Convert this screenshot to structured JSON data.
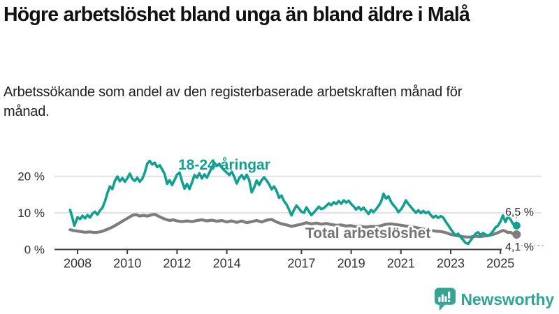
{
  "header": {
    "title": "Högre arbetslöshet bland unga än bland äldre i Malå",
    "subtitle": "Arbetssökande som andel av den registerbaserade arbetskraften månad för månad."
  },
  "footer": {
    "brand": "Newsworthy",
    "logo_icon": "speech-bubble-bar-chart-exclamation",
    "brand_color": "#2fa594"
  },
  "chart_data": {
    "type": "line",
    "title": "",
    "xlabel": "",
    "ylabel": "",
    "grid": "horizontal",
    "x_axis": {
      "ticks": [
        2008,
        2010,
        2012,
        2014,
        2017,
        2019,
        2021,
        2023,
        2025
      ],
      "range": [
        2007.1,
        2026.6
      ]
    },
    "y_axis": {
      "ticks": [
        0,
        10,
        20
      ],
      "tick_suffix": " %",
      "range": [
        0,
        27
      ]
    },
    "colors": {
      "grid": "#d8d8d8",
      "axis": "#3f3f3f",
      "tick_text": "#333333",
      "end_label_text": "#2b2b2b",
      "leader": "#999999"
    },
    "series": [
      {
        "name": "Total arbetslöshet",
        "color": "#7d7d7d",
        "label_color": "#737373",
        "end_label": "4,1 %",
        "end_value": 4.1,
        "points": [
          [
            2007.7,
            5.4
          ],
          [
            2007.9,
            5.1
          ],
          [
            2008.1,
            4.9
          ],
          [
            2008.3,
            4.7
          ],
          [
            2008.5,
            4.8
          ],
          [
            2008.7,
            4.6
          ],
          [
            2008.9,
            4.8
          ],
          [
            2009.0,
            5.0
          ],
          [
            2009.2,
            5.5
          ],
          [
            2009.4,
            6.1
          ],
          [
            2009.6,
            6.9
          ],
          [
            2009.8,
            7.7
          ],
          [
            2010.0,
            8.5
          ],
          [
            2010.2,
            9.3
          ],
          [
            2010.35,
            9.5
          ],
          [
            2010.5,
            9.1
          ],
          [
            2010.65,
            9.3
          ],
          [
            2010.8,
            9.1
          ],
          [
            2010.95,
            9.4
          ],
          [
            2011.1,
            9.6
          ],
          [
            2011.25,
            9.1
          ],
          [
            2011.4,
            8.6
          ],
          [
            2011.55,
            8.2
          ],
          [
            2011.7,
            7.9
          ],
          [
            2011.85,
            8.1
          ],
          [
            2012.0,
            7.8
          ],
          [
            2012.2,
            7.6
          ],
          [
            2012.4,
            7.8
          ],
          [
            2012.6,
            7.6
          ],
          [
            2012.8,
            7.9
          ],
          [
            2013.0,
            8.1
          ],
          [
            2013.2,
            7.8
          ],
          [
            2013.4,
            8.0
          ],
          [
            2013.6,
            7.7
          ],
          [
            2013.8,
            7.9
          ],
          [
            2014.0,
            7.5
          ],
          [
            2014.2,
            7.8
          ],
          [
            2014.4,
            7.4
          ],
          [
            2014.6,
            7.8
          ],
          [
            2014.8,
            7.3
          ],
          [
            2015.0,
            7.6
          ],
          [
            2015.2,
            7.9
          ],
          [
            2015.4,
            7.5
          ],
          [
            2015.6,
            8.0
          ],
          [
            2015.8,
            8.2
          ],
          [
            2016.0,
            7.5
          ],
          [
            2016.2,
            7.0
          ],
          [
            2016.4,
            6.7
          ],
          [
            2016.6,
            6.3
          ],
          [
            2016.8,
            6.6
          ],
          [
            2017.0,
            6.9
          ],
          [
            2017.2,
            7.3
          ],
          [
            2017.4,
            7.0
          ],
          [
            2017.6,
            7.2
          ],
          [
            2017.8,
            6.9
          ],
          [
            2018.0,
            7.1
          ],
          [
            2018.2,
            6.8
          ],
          [
            2018.4,
            6.6
          ],
          [
            2018.6,
            6.7
          ],
          [
            2018.8,
            6.4
          ],
          [
            2019.0,
            6.5
          ],
          [
            2019.2,
            6.2
          ],
          [
            2019.4,
            6.3
          ],
          [
            2019.6,
            6.1
          ],
          [
            2019.8,
            6.3
          ],
          [
            2020.0,
            6.2
          ],
          [
            2020.2,
            6.5
          ],
          [
            2020.4,
            6.9
          ],
          [
            2020.6,
            7.0
          ],
          [
            2020.8,
            6.8
          ],
          [
            2021.0,
            6.6
          ],
          [
            2021.2,
            6.4
          ],
          [
            2021.4,
            6.2
          ],
          [
            2021.6,
            6.0
          ],
          [
            2021.8,
            5.7
          ],
          [
            2022.0,
            5.4
          ],
          [
            2022.2,
            5.2
          ],
          [
            2022.4,
            5.0
          ],
          [
            2022.6,
            4.9
          ],
          [
            2022.8,
            4.6
          ],
          [
            2023.0,
            4.1
          ],
          [
            2023.2,
            3.8
          ],
          [
            2023.4,
            3.6
          ],
          [
            2023.6,
            3.4
          ],
          [
            2023.8,
            3.4
          ],
          [
            2024.0,
            3.6
          ],
          [
            2024.2,
            3.5
          ],
          [
            2024.4,
            3.7
          ],
          [
            2024.6,
            3.9
          ],
          [
            2024.8,
            4.3
          ],
          [
            2025.0,
            4.9
          ],
          [
            2025.1,
            5.2
          ],
          [
            2025.2,
            5.0
          ],
          [
            2025.3,
            4.6
          ],
          [
            2025.4,
            4.7
          ],
          [
            2025.5,
            4.3
          ],
          [
            2025.65,
            4.1
          ]
        ]
      },
      {
        "name": "18-24-åringar",
        "color": "#10a091",
        "label_color": "#0fa091",
        "end_label": "6,5 %",
        "end_value": 6.5,
        "points": [
          [
            2007.7,
            10.8
          ],
          [
            2007.78,
            8.9
          ],
          [
            2007.87,
            6.5
          ],
          [
            2008.0,
            8.8
          ],
          [
            2008.1,
            8.3
          ],
          [
            2008.2,
            9.2
          ],
          [
            2008.3,
            8.5
          ],
          [
            2008.4,
            9.4
          ],
          [
            2008.5,
            8.7
          ],
          [
            2008.6,
            9.8
          ],
          [
            2008.7,
            10.3
          ],
          [
            2008.8,
            9.5
          ],
          [
            2008.9,
            10.6
          ],
          [
            2009.0,
            11.4
          ],
          [
            2009.1,
            13.1
          ],
          [
            2009.2,
            15.4
          ],
          [
            2009.3,
            17.2
          ],
          [
            2009.4,
            16.5
          ],
          [
            2009.5,
            18.7
          ],
          [
            2009.6,
            19.9
          ],
          [
            2009.7,
            18.6
          ],
          [
            2009.8,
            19.5
          ],
          [
            2009.9,
            18.5
          ],
          [
            2010.0,
            19.4
          ],
          [
            2010.1,
            20.7
          ],
          [
            2010.2,
            19.3
          ],
          [
            2010.3,
            18.7
          ],
          [
            2010.4,
            19.6
          ],
          [
            2010.5,
            18.5
          ],
          [
            2010.6,
            19.3
          ],
          [
            2010.7,
            20.9
          ],
          [
            2010.8,
            23.4
          ],
          [
            2010.9,
            24.2
          ],
          [
            2011.0,
            23.2
          ],
          [
            2011.1,
            23.7
          ],
          [
            2011.2,
            22.5
          ],
          [
            2011.3,
            23.0
          ],
          [
            2011.4,
            21.9
          ],
          [
            2011.5,
            20.6
          ],
          [
            2011.6,
            17.9
          ],
          [
            2011.7,
            18.9
          ],
          [
            2011.8,
            17.6
          ],
          [
            2011.9,
            19.0
          ],
          [
            2012.0,
            20.4
          ],
          [
            2012.1,
            21.0
          ],
          [
            2012.2,
            18.6
          ],
          [
            2012.3,
            16.6
          ],
          [
            2012.4,
            17.9
          ],
          [
            2012.5,
            16.5
          ],
          [
            2012.6,
            18.3
          ],
          [
            2012.7,
            20.3
          ],
          [
            2012.8,
            19.6
          ],
          [
            2012.9,
            20.8
          ],
          [
            2013.0,
            19.4
          ],
          [
            2013.1,
            20.5
          ],
          [
            2013.2,
            19.6
          ],
          [
            2013.3,
            21.0
          ],
          [
            2013.4,
            22.4
          ],
          [
            2013.5,
            23.7
          ],
          [
            2013.6,
            22.8
          ],
          [
            2013.7,
            23.4
          ],
          [
            2013.8,
            22.3
          ],
          [
            2013.9,
            21.6
          ],
          [
            2014.0,
            21.0
          ],
          [
            2014.1,
            20.3
          ],
          [
            2014.2,
            21.2
          ],
          [
            2014.3,
            19.8
          ],
          [
            2014.4,
            18.0
          ],
          [
            2014.5,
            19.5
          ],
          [
            2014.6,
            20.3
          ],
          [
            2014.7,
            19.2
          ],
          [
            2014.8,
            20.4
          ],
          [
            2014.9,
            19.0
          ],
          [
            2015.0,
            15.6
          ],
          [
            2015.1,
            17.0
          ],
          [
            2015.2,
            18.8
          ],
          [
            2015.3,
            17.6
          ],
          [
            2015.4,
            18.9
          ],
          [
            2015.5,
            19.7
          ],
          [
            2015.6,
            18.8
          ],
          [
            2015.7,
            17.8
          ],
          [
            2015.8,
            16.4
          ],
          [
            2015.9,
            17.2
          ],
          [
            2016.0,
            16.0
          ],
          [
            2016.1,
            14.1
          ],
          [
            2016.2,
            14.7
          ],
          [
            2016.3,
            13.2
          ],
          [
            2016.4,
            12.3
          ],
          [
            2016.5,
            10.9
          ],
          [
            2016.6,
            9.3
          ],
          [
            2016.7,
            10.8
          ],
          [
            2016.8,
            12.0
          ],
          [
            2016.9,
            11.2
          ],
          [
            2017.0,
            10.3
          ],
          [
            2017.1,
            10.0
          ],
          [
            2017.2,
            11.5
          ],
          [
            2017.3,
            10.4
          ],
          [
            2017.4,
            9.4
          ],
          [
            2017.5,
            10.1
          ],
          [
            2017.6,
            10.9
          ],
          [
            2017.7,
            11.7
          ],
          [
            2017.8,
            11.0
          ],
          [
            2017.9,
            11.3
          ],
          [
            2018.0,
            11.9
          ],
          [
            2018.1,
            12.6
          ],
          [
            2018.2,
            12.1
          ],
          [
            2018.3,
            12.9
          ],
          [
            2018.4,
            12.4
          ],
          [
            2018.5,
            13.2
          ],
          [
            2018.6,
            12.5
          ],
          [
            2018.7,
            13.4
          ],
          [
            2018.8,
            12.8
          ],
          [
            2018.9,
            13.3
          ],
          [
            2019.0,
            12.4
          ],
          [
            2019.1,
            11.7
          ],
          [
            2019.2,
            10.9
          ],
          [
            2019.3,
            11.6
          ],
          [
            2019.4,
            10.8
          ],
          [
            2019.5,
            11.4
          ],
          [
            2019.6,
            10.5
          ],
          [
            2019.7,
            9.7
          ],
          [
            2019.8,
            10.8
          ],
          [
            2019.9,
            10.2
          ],
          [
            2020.0,
            11.0
          ],
          [
            2020.1,
            11.9
          ],
          [
            2020.2,
            13.0
          ],
          [
            2020.3,
            15.2
          ],
          [
            2020.4,
            13.9
          ],
          [
            2020.5,
            14.5
          ],
          [
            2020.6,
            13.0
          ],
          [
            2020.7,
            12.1
          ],
          [
            2020.8,
            11.3
          ],
          [
            2020.9,
            10.2
          ],
          [
            2021.0,
            10.9
          ],
          [
            2021.1,
            12.0
          ],
          [
            2021.2,
            13.4
          ],
          [
            2021.3,
            12.4
          ],
          [
            2021.4,
            11.6
          ],
          [
            2021.5,
            10.8
          ],
          [
            2021.6,
            10.0
          ],
          [
            2021.7,
            10.7
          ],
          [
            2021.8,
            9.9
          ],
          [
            2021.9,
            10.5
          ],
          [
            2022.0,
            9.9
          ],
          [
            2022.1,
            10.3
          ],
          [
            2022.2,
            9.4
          ],
          [
            2022.3,
            8.7
          ],
          [
            2022.4,
            9.2
          ],
          [
            2022.5,
            8.6
          ],
          [
            2022.6,
            9.1
          ],
          [
            2022.7,
            8.7
          ],
          [
            2022.8,
            7.6
          ],
          [
            2022.9,
            6.6
          ],
          [
            2023.0,
            5.6
          ],
          [
            2023.1,
            4.6
          ],
          [
            2023.2,
            3.8
          ],
          [
            2023.3,
            4.3
          ],
          [
            2023.4,
            3.4
          ],
          [
            2023.5,
            2.6
          ],
          [
            2023.6,
            1.8
          ],
          [
            2023.7,
            1.5
          ],
          [
            2023.8,
            2.5
          ],
          [
            2023.9,
            3.4
          ],
          [
            2024.0,
            4.3
          ],
          [
            2024.1,
            4.7
          ],
          [
            2024.2,
            3.9
          ],
          [
            2024.3,
            4.5
          ],
          [
            2024.4,
            4.1
          ],
          [
            2024.5,
            3.7
          ],
          [
            2024.6,
            4.2
          ],
          [
            2024.7,
            5.0
          ],
          [
            2024.8,
            6.0
          ],
          [
            2024.9,
            6.5
          ],
          [
            2025.0,
            7.6
          ],
          [
            2025.1,
            9.3
          ],
          [
            2025.2,
            7.5
          ],
          [
            2025.3,
            9.0
          ],
          [
            2025.4,
            8.3
          ],
          [
            2025.5,
            7.0
          ],
          [
            2025.65,
            6.5
          ]
        ]
      }
    ]
  }
}
